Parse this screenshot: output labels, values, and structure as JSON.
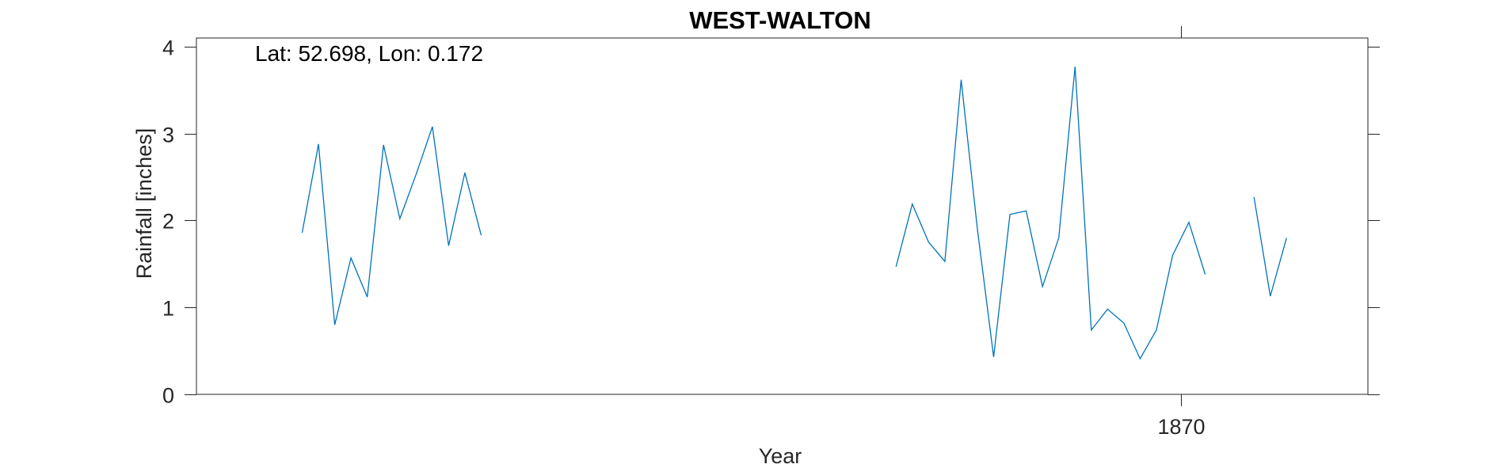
{
  "chart_data": {
    "type": "line",
    "title": "WEST-WALTON",
    "xlabel": "Year",
    "ylabel": "Rainfall [inches]",
    "annotation": "Lat: 52.698, Lon: 0.172",
    "ylim": [
      0,
      4.1
    ],
    "yticks": [
      0,
      1,
      2,
      3,
      4
    ],
    "xlim": [
      1809.5,
      1881.5
    ],
    "xticks": [
      1870
    ],
    "xtick_labels": [
      "1870"
    ],
    "grid": false,
    "line_color": "#0072BD",
    "segments": [
      {
        "x": [
          1816,
          1817,
          1818,
          1819,
          1820,
          1821,
          1822,
          1823,
          1824,
          1825,
          1826,
          1827
        ],
        "y": [
          1.86,
          2.88,
          0.8,
          1.57,
          1.12,
          2.87,
          2.02,
          2.53,
          3.08,
          1.71,
          2.55,
          1.83
        ]
      },
      {
        "x": [
          1852.5,
          1853.5,
          1854.5,
          1855.5,
          1856.5,
          1857.5,
          1858.5,
          1859.5,
          1860.5,
          1861.5,
          1862.5,
          1863.5,
          1864.5,
          1865.5,
          1866.5,
          1867.5,
          1868.5,
          1869.5,
          1870.5,
          1871.5
        ],
        "y": [
          1.47,
          2.19,
          1.75,
          1.53,
          3.62,
          1.9,
          0.43,
          2.07,
          2.11,
          1.24,
          1.8,
          3.77,
          0.74,
          0.98,
          0.82,
          0.41,
          0.74,
          1.6,
          1.98,
          1.38
        ]
      },
      {
        "x": [
          1874.5,
          1875.5,
          1876.5
        ],
        "y": [
          2.27,
          1.13,
          1.8
        ]
      }
    ]
  }
}
